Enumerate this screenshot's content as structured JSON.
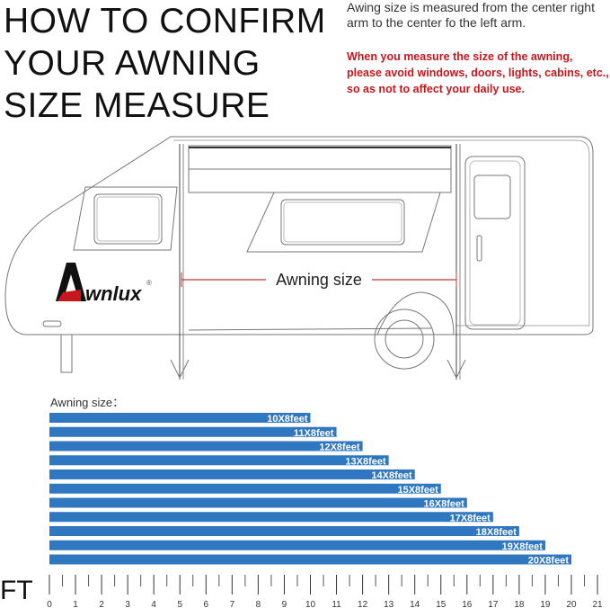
{
  "header": {
    "title_lines": [
      "HOW TO CONFIRM",
      "YOUR AWNING",
      "SIZE MEASURE"
    ],
    "note": "Awing size is measured from the center right arm to the center fo the left arm.",
    "warning": "When you measure the size of the awning, please avoid windows, doors, lights, cabins, etc., so as not to affect your daily use."
  },
  "illustration": {
    "brand_logo": "Awnlux",
    "measure_label": "Awning size",
    "measure_color": "#c0392b"
  },
  "chart_data": {
    "type": "bar",
    "orientation": "horizontal",
    "title": "Awning size：",
    "categories": [
      "10X8feet",
      "11X8feet",
      "12X8feet",
      "13X8feet",
      "14X8feet",
      "15X8feet",
      "16X8feet",
      "17X8feet",
      "18X8feet",
      "19X8feet",
      "20X8feet"
    ],
    "values": [
      10,
      11,
      12,
      13,
      14,
      15,
      16,
      17,
      18,
      19,
      20
    ],
    "xlabel": "FT",
    "xlim": [
      0,
      21
    ],
    "xticks": [
      "0",
      "1",
      "2",
      "3",
      "4",
      "5",
      "6",
      "7",
      "8",
      "9",
      "10",
      "11",
      "12",
      "13",
      "14",
      "15",
      "16",
      "17",
      "18",
      "19",
      "20",
      "21"
    ],
    "bar_color": "#2f78c1",
    "grid": false
  }
}
